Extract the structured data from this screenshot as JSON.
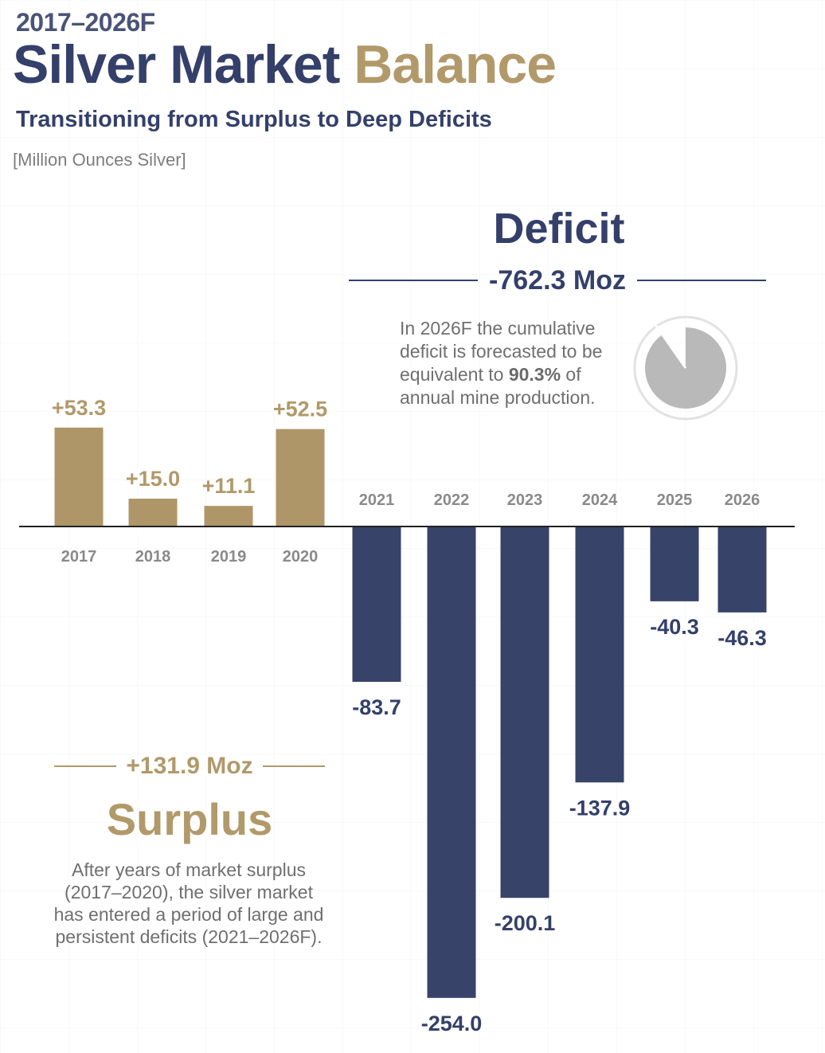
{
  "header": {
    "kicker": "2017–2026F",
    "title_main": "Silver Market ",
    "title_accent": "Balance",
    "subtitle": "Transitioning from Surplus to Deep Deficits",
    "units": "[Million Ounces Silver]"
  },
  "deficit": {
    "heading": "Deficit",
    "total": "-762.3 Moz",
    "note_pre": "In 2026F the cumulative deficit is forecasted to be equivalent to ",
    "note_pct": "90.3%",
    "note_post": " of annual mine production.",
    "pie_fraction": 0.903,
    "pie_color": "#b9b9b9"
  },
  "surplus": {
    "total": "+131.9 Moz",
    "heading": "Surplus",
    "note": "After years of market surplus (2017–2020), the silver market has entered a period of large and persistent deficits (2021–2026F)."
  },
  "colors": {
    "surplus": "#ae9668",
    "deficit": "#384369",
    "surplus_text": "#b1996a",
    "deficit_text": "#34406a",
    "axis": "#222222"
  },
  "chart_data": {
    "type": "bar",
    "title": "Silver Market Balance",
    "categories": [
      "2017",
      "2018",
      "2019",
      "2020",
      "2021",
      "2022",
      "2023",
      "2024",
      "2025",
      "2026"
    ],
    "values": [
      53.3,
      15.0,
      11.1,
      52.5,
      -83.7,
      -254.0,
      -200.1,
      -137.9,
      -40.3,
      -46.3
    ],
    "value_labels": [
      "+53.3",
      "+15.0",
      "+11.1",
      "+52.5",
      "-83.7",
      "-254.0",
      "-200.1",
      "-137.9",
      "-40.3",
      "-46.3"
    ],
    "ylabel": "[Million Ounces Silver]",
    "grid": false,
    "legend": "none"
  }
}
